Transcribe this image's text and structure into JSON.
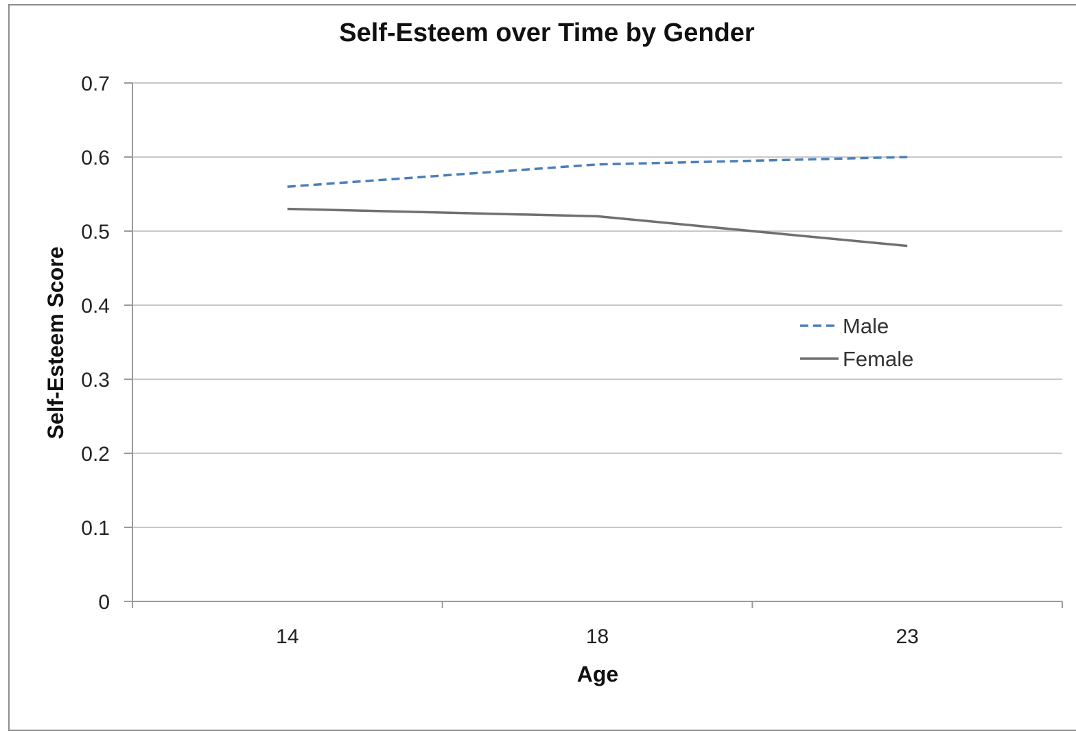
{
  "chart_data": {
    "type": "line",
    "title": "Self-Esteem over Time by Gender",
    "xlabel": "Age",
    "ylabel": "Self-Esteem Score",
    "categories": [
      "14",
      "18",
      "23"
    ],
    "ylim": [
      0,
      0.7
    ],
    "yticks": [
      "0",
      "0.1",
      "0.2",
      "0.3",
      "0.4",
      "0.5",
      "0.6",
      "0.7"
    ],
    "grid": true,
    "legend_position": "right-center",
    "series": [
      {
        "name": "Male",
        "values": [
          0.56,
          0.59,
          0.6
        ],
        "color": "#4a7ebb",
        "style": "dashed"
      },
      {
        "name": "Female",
        "values": [
          0.53,
          0.52,
          0.48
        ],
        "color": "#707070",
        "style": "solid"
      }
    ]
  }
}
